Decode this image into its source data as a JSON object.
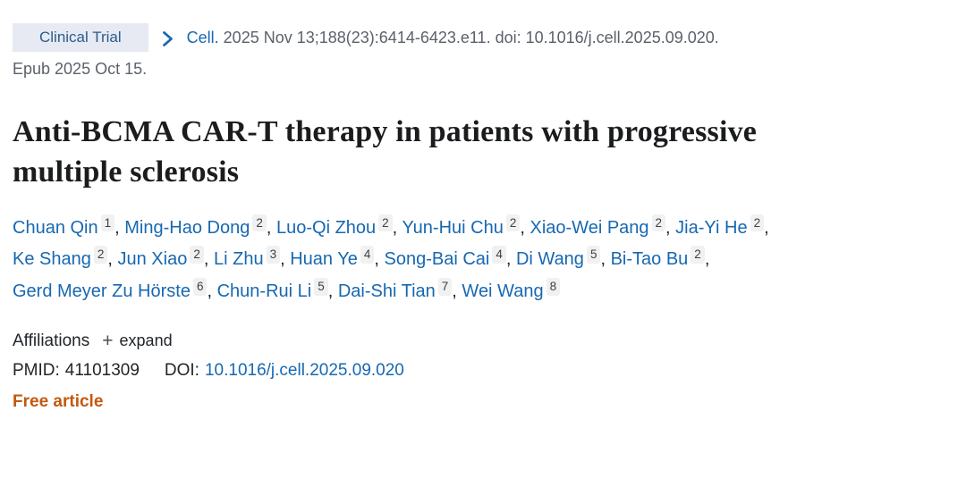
{
  "badge": {
    "label": "Clinical Trial"
  },
  "citation": {
    "journal": "Cell.",
    "meta": "2025 Nov 13;188(23):6414-6423.e11. doi: 10.1016/j.cell.2025.09.020.",
    "epub": "Epub 2025 Oct 15."
  },
  "title": "Anti-BCMA CAR-T therapy in patients with progressive multiple sclerosis",
  "authors": [
    {
      "name": "Chuan Qin",
      "affiliation": "1"
    },
    {
      "name": "Ming-Hao Dong",
      "affiliation": "2"
    },
    {
      "name": "Luo-Qi Zhou",
      "affiliation": "2"
    },
    {
      "name": "Yun-Hui Chu",
      "affiliation": "2"
    },
    {
      "name": "Xiao-Wei Pang",
      "affiliation": "2"
    },
    {
      "name": "Jia-Yi He",
      "affiliation": "2"
    },
    {
      "name": "Ke Shang",
      "affiliation": "2"
    },
    {
      "name": "Jun Xiao",
      "affiliation": "2"
    },
    {
      "name": "Li Zhu",
      "affiliation": "3"
    },
    {
      "name": "Huan Ye",
      "affiliation": "4"
    },
    {
      "name": "Song-Bai Cai",
      "affiliation": "4"
    },
    {
      "name": "Di Wang",
      "affiliation": "5"
    },
    {
      "name": "Bi-Tao Bu",
      "affiliation": "2"
    },
    {
      "name": "Gerd Meyer Zu Hörste",
      "affiliation": "6"
    },
    {
      "name": "Chun-Rui Li",
      "affiliation": "5"
    },
    {
      "name": "Dai-Shi Tian",
      "affiliation": "7"
    },
    {
      "name": "Wei Wang",
      "affiliation": "8"
    }
  ],
  "affiliations": {
    "label": "Affiliations",
    "expand_icon": "+",
    "expand_label": "expand"
  },
  "identifiers": {
    "pmid_label": "PMID:",
    "pmid_value": "41101309",
    "doi_label": "DOI:",
    "doi_value": "10.1016/j.cell.2025.09.020"
  },
  "access": {
    "free_article_label": "Free article"
  },
  "colors": {
    "link_blue": "#1768b1",
    "badge_bg": "#e7eaf3",
    "badge_text": "#2a5e8c",
    "citation_gray": "#5b616b",
    "text_dark": "#212529",
    "title_color": "#1b1c1e",
    "superscript_bg": "#f1f1f2",
    "superscript_text": "#3c4043",
    "free_article_orange": "#c2590f"
  }
}
